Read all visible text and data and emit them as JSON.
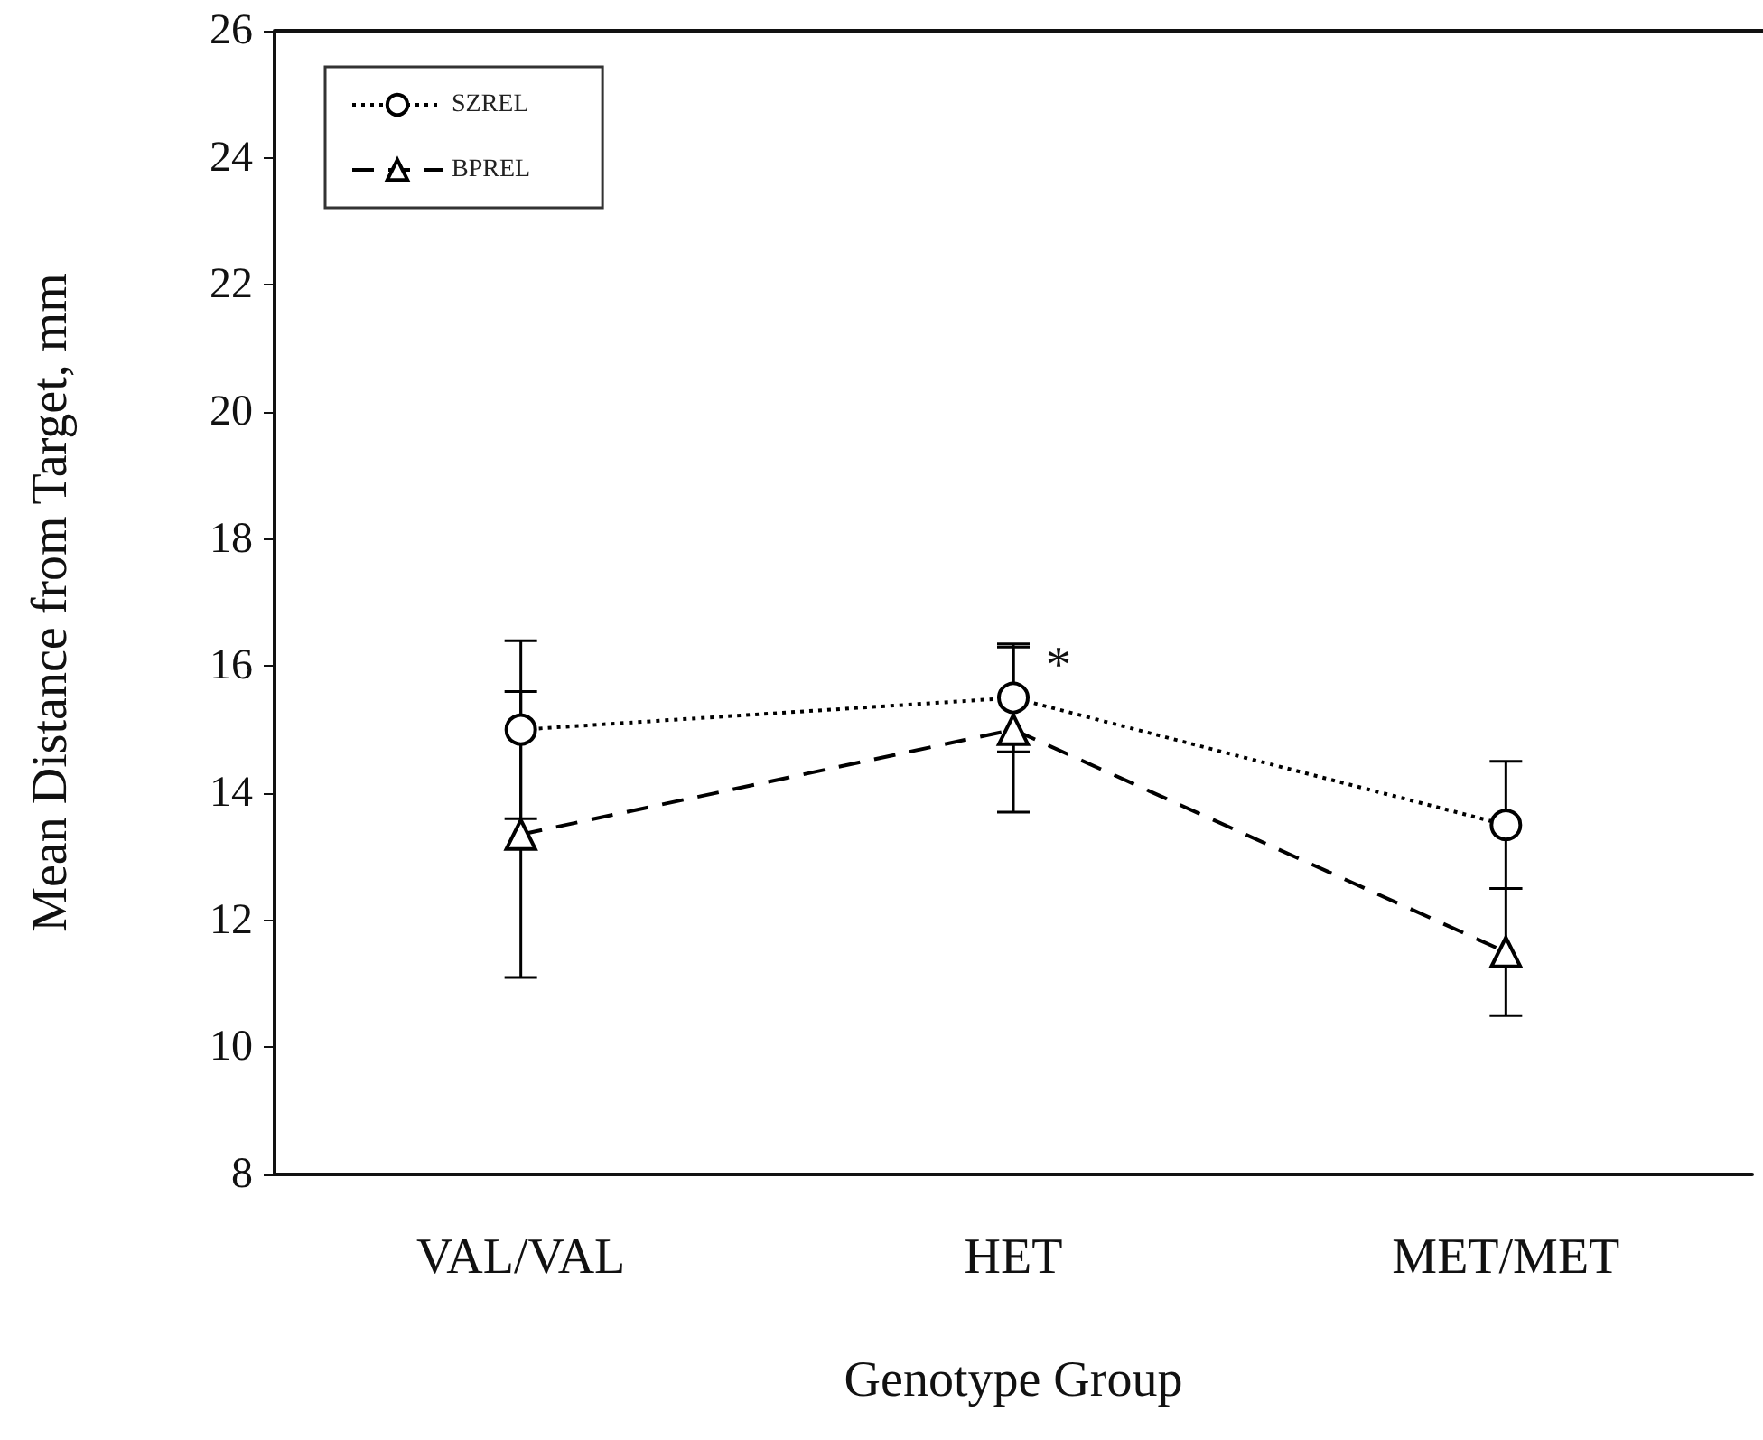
{
  "chart_data": {
    "type": "line",
    "xlabel": "Genotype Group",
    "ylabel": "Mean Distance from Target, mm",
    "categories": [
      "VAL/VAL",
      "HET",
      "MET/MET"
    ],
    "series": [
      {
        "name": "SZREL",
        "color": "#000000",
        "values": [
          15.0,
          15.5,
          13.5
        ],
        "errors": [
          1.4,
          0.85,
          1.0
        ],
        "marker": "circle",
        "line_style": "dotted"
      },
      {
        "name": "BPREL",
        "color": "#000000",
        "values": [
          13.35,
          15.0,
          11.5
        ],
        "errors": [
          2.25,
          1.3,
          1.0
        ],
        "marker": "triangle",
        "line_style": "dashed"
      }
    ],
    "ylim": [
      8,
      26
    ],
    "yticks": [
      8,
      10,
      12,
      14,
      16,
      18,
      20,
      22,
      24,
      26
    ],
    "annotations": [
      {
        "text": "*",
        "x": "HET",
        "y": 16.0
      }
    ],
    "grid": false,
    "legend": "top left"
  }
}
